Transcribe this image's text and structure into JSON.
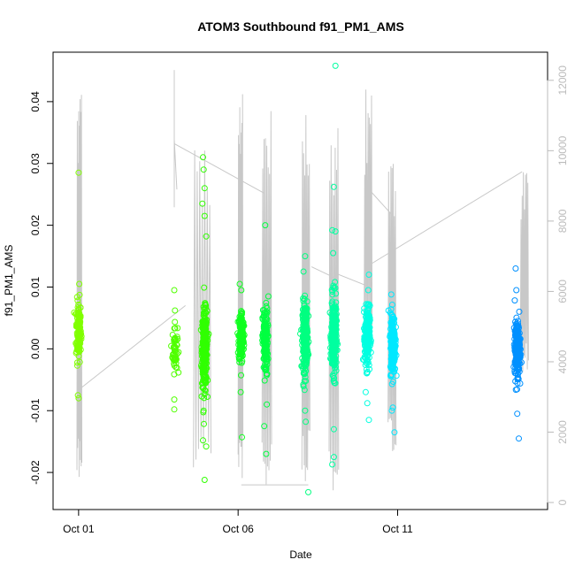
{
  "chart_data": {
    "type": "scatter",
    "title": "ATOM3 Southbound f91_PM1_AMS",
    "xlabel": "Date",
    "ylabel": "f91_PM1_AMS",
    "x_ticks": [
      "Oct 01",
      "Oct 06",
      "Oct 11"
    ],
    "x_tick_days": [
      1,
      6,
      11
    ],
    "xlim_days": [
      0.2,
      15.7
    ],
    "ylim": [
      -0.026,
      0.048
    ],
    "y_ticks": [
      -0.02,
      -0.01,
      0.0,
      0.01,
      0.02,
      0.03,
      0.04
    ],
    "y_tick_labels": [
      "-0.02",
      "-0.01",
      "0.00",
      "0.01",
      "0.02",
      "0.03",
      "0.04"
    ],
    "y2lim": [
      -200,
      12800
    ],
    "y2_ticks": [
      0,
      2000,
      4000,
      6000,
      8000,
      10000,
      12000
    ],
    "y2_tick_labels": [
      "0",
      "2000",
      "4000",
      "6000",
      "8000",
      "10000",
      "12000"
    ],
    "grid": false,
    "legend": "none",
    "series": [
      {
        "day": 1.0,
        "center": 0.003,
        "spread": 0.0045,
        "n": 120,
        "color": "#80ff00",
        "outliers": [
          [
            1.0,
            0.0285
          ],
          [
            1.0,
            -0.008
          ],
          [
            1.02,
            0.0105
          ],
          [
            0.98,
            -0.0075
          ]
        ]
      },
      {
        "day": 4.02,
        "center": 0.0,
        "spread": 0.0035,
        "n": 60,
        "color": "#50ff00",
        "outliers": [
          [
            4.0,
            0.0095
          ],
          [
            4.0,
            -0.0098
          ],
          [
            4.02,
            0.0062
          ],
          [
            4.0,
            -0.0082
          ]
        ]
      },
      {
        "day": 4.95,
        "center": 0.0,
        "spread": 0.0055,
        "n": 320,
        "color": "#30ff00",
        "outliers": [
          [
            4.9,
            0.031
          ],
          [
            4.92,
            0.029
          ],
          [
            4.95,
            0.026
          ],
          [
            4.88,
            0.0235
          ],
          [
            4.9,
            -0.0148
          ],
          [
            4.95,
            -0.0212
          ],
          [
            5.0,
            -0.0158
          ],
          [
            4.92,
            -0.01
          ],
          [
            5.0,
            0.0182
          ],
          [
            4.95,
            0.0215
          ]
        ]
      },
      {
        "day": 6.1,
        "center": 0.002,
        "spread": 0.004,
        "n": 170,
        "color": "#10ff20",
        "outliers": [
          [
            6.12,
            -0.0143
          ],
          [
            6.05,
            0.0105
          ],
          [
            6.08,
            -0.007
          ],
          [
            6.1,
            0.0095
          ]
        ]
      },
      {
        "day": 6.85,
        "center": 0.001,
        "spread": 0.005,
        "n": 160,
        "color": "#00ff40",
        "outliers": [
          [
            6.85,
            0.02
          ],
          [
            6.88,
            -0.017
          ],
          [
            6.82,
            -0.0125
          ],
          [
            6.95,
            0.0085
          ],
          [
            6.9,
            -0.009
          ]
        ]
      },
      {
        "day": 8.1,
        "center": 0.002,
        "spread": 0.005,
        "n": 260,
        "color": "#00ff80",
        "outliers": [
          [
            8.2,
            -0.0232
          ],
          [
            8.1,
            0.015
          ],
          [
            8.05,
            0.0125
          ],
          [
            8.12,
            -0.0118
          ],
          [
            8.1,
            -0.01
          ]
        ]
      },
      {
        "day": 9.0,
        "center": 0.002,
        "spread": 0.0055,
        "n": 300,
        "color": "#00ffa0",
        "outliers": [
          [
            9.05,
            0.0458
          ],
          [
            9.0,
            0.0262
          ],
          [
            8.95,
            0.0192
          ],
          [
            9.05,
            0.019
          ],
          [
            9.0,
            -0.0175
          ],
          [
            8.95,
            -0.0187
          ],
          [
            9.0,
            -0.013
          ],
          [
            8.98,
            0.0155
          ]
        ]
      },
      {
        "day": 10.05,
        "center": 0.002,
        "spread": 0.0045,
        "n": 230,
        "color": "#00ffe0",
        "outliers": [
          [
            10.1,
            0.012
          ],
          [
            10.1,
            -0.0115
          ],
          [
            10.05,
            -0.0088
          ],
          [
            10.0,
            -0.007
          ],
          [
            10.08,
            0.0095
          ]
        ]
      },
      {
        "day": 10.85,
        "center": 0.001,
        "spread": 0.0045,
        "n": 250,
        "color": "#00e8ff",
        "outliers": [
          [
            10.9,
            -0.0135
          ],
          [
            10.85,
            -0.0095
          ],
          [
            10.8,
            0.0088
          ],
          [
            10.82,
            -0.01
          ]
        ]
      },
      {
        "day": 14.75,
        "center": 0.0,
        "spread": 0.004,
        "n": 260,
        "color": "#0090ff",
        "outliers": [
          [
            14.7,
            0.013
          ],
          [
            14.8,
            -0.0145
          ],
          [
            14.75,
            -0.0105
          ],
          [
            14.72,
            0.0095
          ]
        ]
      }
    ],
    "y2_series": {
      "name": "",
      "color": "#c8c8c8",
      "segments": [
        {
          "from": [
            0.95,
            400
          ],
          "to": [
            1.1,
            11800
          ],
          "type": "spike"
        },
        {
          "from": [
            1.0,
            3200
          ],
          "to": [
            4.35,
            5600
          ],
          "type": "line"
        },
        {
          "from": [
            4.0,
            12300
          ],
          "to": [
            4.0,
            10300
          ],
          "type": "spike"
        },
        {
          "from": [
            4.0,
            10300
          ],
          "to": [
            4.08,
            8900
          ],
          "type": "line"
        },
        {
          "from": [
            4.6,
            800
          ],
          "to": [
            5.15,
            10800
          ],
          "type": "spike"
        },
        {
          "from": [
            4.0,
            10200
          ],
          "to": [
            6.8,
            8800
          ],
          "type": "line"
        },
        {
          "from": [
            6.0,
            100
          ],
          "to": [
            6.15,
            12400
          ],
          "type": "spike"
        },
        {
          "from": [
            6.1,
            500
          ],
          "to": [
            8.2,
            500
          ],
          "type": "line"
        },
        {
          "from": [
            6.75,
            300
          ],
          "to": [
            7.05,
            11200
          ],
          "type": "spike"
        },
        {
          "from": [
            8.0,
            400
          ],
          "to": [
            8.25,
            11600
          ],
          "type": "spike"
        },
        {
          "from": [
            8.3,
            6700
          ],
          "to": [
            9.0,
            6400
          ],
          "type": "line"
        },
        {
          "from": [
            8.85,
            300
          ],
          "to": [
            9.15,
            10800
          ],
          "type": "spike"
        },
        {
          "from": [
            9.1,
            6500
          ],
          "to": [
            10.2,
            6100
          ],
          "type": "line"
        },
        {
          "from": [
            9.95,
            4300
          ],
          "to": [
            10.2,
            11800
          ],
          "type": "spike"
        },
        {
          "from": [
            10.1,
            8900
          ],
          "to": [
            10.8,
            8200
          ],
          "type": "line"
        },
        {
          "from": [
            10.7,
            1200
          ],
          "to": [
            10.95,
            10000
          ],
          "type": "spike"
        },
        {
          "from": [
            10.2,
            6800
          ],
          "to": [
            14.9,
            9400
          ],
          "type": "line"
        },
        {
          "from": [
            14.85,
            3600
          ],
          "to": [
            15.1,
            9800
          ],
          "type": "spike"
        }
      ]
    }
  }
}
